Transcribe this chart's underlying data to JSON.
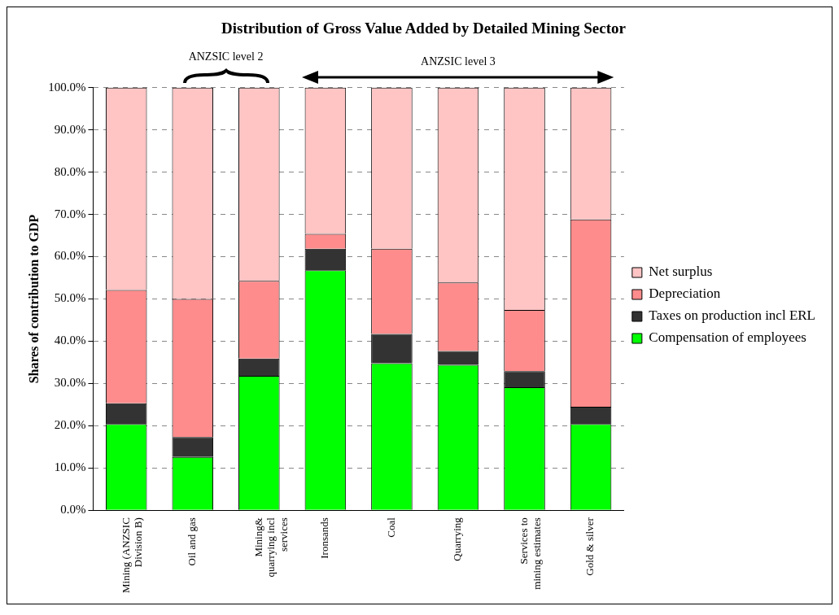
{
  "chart_data": {
    "type": "bar",
    "stacked": true,
    "title": "Distribution of Gross Value Added by Detailed Mining Sector",
    "ylabel": "Shares of contribution to GDP",
    "annotations": [
      "ANZSIC level 2",
      "ANZSIC level 3"
    ],
    "categories": [
      "Mining (ANZSIC Division B)",
      "Oil and gas",
      "Mining& quarrying incl services",
      "Ironsands",
      "Coal",
      "Quarrying",
      "Services to mining estimates",
      "Gold & silver"
    ],
    "series": [
      {
        "name": "Compensation of employees",
        "color": "#00ff00",
        "values": [
          20.4,
          12.6,
          31.8,
          56.8,
          34.8,
          34.4,
          29.1,
          20.4
        ]
      },
      {
        "name": "Taxes on production incl ERL",
        "color": "#333333",
        "values": [
          4.9,
          4.7,
          4.1,
          5.1,
          6.9,
          3.3,
          3.8,
          4.1
        ]
      },
      {
        "name": "Depreciation",
        "color": "#ff8c8c",
        "values": [
          26.8,
          32.7,
          18.4,
          3.5,
          20.2,
          16.2,
          14.5,
          44.3
        ]
      },
      {
        "name": "Net surplus",
        "color": "#ffc4c4",
        "values": [
          47.9,
          50.0,
          45.7,
          34.6,
          38.1,
          46.1,
          52.6,
          31.2
        ]
      }
    ],
    "ylim": [
      0,
      100
    ],
    "yticks": [
      {
        "value": 0,
        "label": "0.0%"
      },
      {
        "value": 10,
        "label": "10.0%"
      },
      {
        "value": 20,
        "label": "20.0%"
      },
      {
        "value": 30,
        "label": "30.0%"
      },
      {
        "value": 40,
        "label": "40.0%"
      },
      {
        "value": 50,
        "label": "50.0%"
      },
      {
        "value": 60,
        "label": "60.0%"
      },
      {
        "value": 70,
        "label": "70.0%"
      },
      {
        "value": 80,
        "label": "80.0%"
      },
      {
        "value": 90,
        "label": "90.0%"
      },
      {
        "value": 100,
        "label": "100.0%"
      }
    ],
    "grid": "y",
    "legend": "right"
  }
}
